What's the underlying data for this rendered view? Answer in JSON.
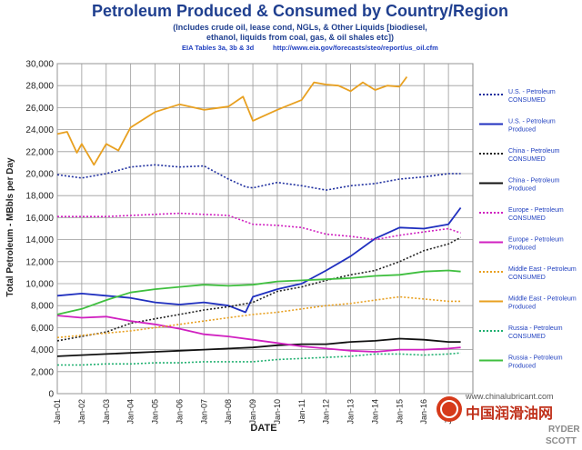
{
  "chart_data": {
    "type": "line",
    "title": "Petroleum Produced & Consumed by Country/Region",
    "subtitle_lines": [
      "(Includes crude oil, lease cond, NGLs, & Other Liquids [biodiesel,",
      "ethanol, liquids from coal, gas, & oil shales etc])"
    ],
    "source_left": "EIA Tables 3a, 3b & 3d",
    "source_right": "http://www.eia.gov/forecasts/steo/report/us_oil.cfm",
    "xlabel": "DATE",
    "ylabel": "Total Petroleum - MBbls per Day",
    "ylim": [
      0,
      30000
    ],
    "ytick_labels": [
      "0",
      "2,000",
      "4,000",
      "6,000",
      "8,000",
      "10,000",
      "12,000",
      "14,000",
      "16,000",
      "18,000",
      "20,000",
      "22,000",
      "24,000",
      "26,000",
      "28,000",
      "30,000"
    ],
    "xtick_labels": [
      "Jan-01",
      "Jan-02",
      "Jan-03",
      "Jan-04",
      "Jan-05",
      "Jan-06",
      "Jan-07",
      "Jan-08",
      "Jan-09",
      "Jan-10",
      "Jan-11",
      "Jan-12",
      "Jan-13",
      "Jan-14",
      "Jan-15",
      "Jan-16",
      "Jan-17"
    ],
    "xlim": [
      2001.0,
      2018.0
    ],
    "grid": true,
    "legend_position": "right",
    "series": [
      {
        "name": "U.S. - Petroleum CONSUMED",
        "color": "#1f2f9f",
        "style": "dotted",
        "x": [
          2001,
          2002,
          2003,
          2004,
          2005,
          2006,
          2007,
          2008,
          2008.7,
          2009,
          2010,
          2011,
          2012,
          2013,
          2014,
          2015,
          2016,
          2017,
          2017.5
        ],
        "y": [
          19900,
          19600,
          20000,
          20600,
          20800,
          20600,
          20700,
          19500,
          18800,
          18700,
          19200,
          18900,
          18500,
          18900,
          19100,
          19500,
          19700,
          20000,
          20000
        ]
      },
      {
        "name": "U.S. - Petroleum Produced",
        "color": "#1f2fbf",
        "style": "solid",
        "x": [
          2001,
          2002,
          2003,
          2004,
          2005,
          2006,
          2007,
          2008,
          2008.7,
          2009,
          2010,
          2011,
          2012,
          2013,
          2014,
          2015,
          2016,
          2017,
          2017.5
        ],
        "y": [
          8900,
          9100,
          8900,
          8700,
          8300,
          8100,
          8300,
          8000,
          7400,
          8800,
          9500,
          10000,
          11200,
          12500,
          14100,
          15100,
          15000,
          15400,
          16900
        ]
      },
      {
        "name": "China - Petroleum CONSUMED",
        "color": "#222222",
        "style": "dotted",
        "x": [
          2001,
          2002,
          2003,
          2004,
          2005,
          2006,
          2007,
          2008,
          2009,
          2010,
          2011,
          2012,
          2013,
          2014,
          2015,
          2016,
          2017,
          2017.5
        ],
        "y": [
          4800,
          5200,
          5600,
          6400,
          6800,
          7200,
          7600,
          7900,
          8300,
          9300,
          9700,
          10300,
          10800,
          11200,
          12000,
          13000,
          13600,
          14200
        ]
      },
      {
        "name": "China - Petroleum Produced",
        "color": "#111111",
        "style": "solid",
        "x": [
          2001,
          2002,
          2003,
          2004,
          2005,
          2006,
          2007,
          2008,
          2009,
          2010,
          2011,
          2012,
          2013,
          2014,
          2015,
          2016,
          2017,
          2017.5
        ],
        "y": [
          3400,
          3500,
          3600,
          3700,
          3800,
          3900,
          4000,
          4100,
          4200,
          4400,
          4500,
          4500,
          4700,
          4800,
          5000,
          4900,
          4700,
          4700
        ]
      },
      {
        "name": "Europe - Petroleum CONSUMED",
        "color": "#d020c0",
        "style": "dotted",
        "x": [
          2001,
          2002,
          2003,
          2004,
          2005,
          2006,
          2007,
          2008,
          2009,
          2010,
          2011,
          2012,
          2013,
          2014,
          2015,
          2016,
          2017,
          2017.5
        ],
        "y": [
          16100,
          16100,
          16100,
          16200,
          16300,
          16400,
          16300,
          16200,
          15400,
          15300,
          15100,
          14500,
          14300,
          14000,
          14400,
          14700,
          15000,
          14600
        ]
      },
      {
        "name": "Europe - Petroleum Produced",
        "color": "#d020c0",
        "style": "solid",
        "x": [
          2001,
          2002,
          2003,
          2004,
          2005,
          2006,
          2007,
          2008,
          2009,
          2010,
          2011,
          2012,
          2013,
          2014,
          2015,
          2016,
          2017,
          2017.5
        ],
        "y": [
          7100,
          6900,
          7000,
          6600,
          6300,
          5900,
          5400,
          5200,
          4900,
          4600,
          4300,
          4100,
          3900,
          3800,
          4000,
          4000,
          4100,
          4200
        ]
      },
      {
        "name": "Middle East - Petroleum CONSUMED",
        "color": "#e8a020",
        "style": "dotted",
        "x": [
          2001,
          2002,
          2003,
          2004,
          2005,
          2006,
          2007,
          2008,
          2009,
          2010,
          2011,
          2012,
          2013,
          2014,
          2015,
          2016,
          2017,
          2017.5
        ],
        "y": [
          5100,
          5300,
          5500,
          5700,
          6000,
          6300,
          6600,
          6900,
          7200,
          7400,
          7700,
          8000,
          8200,
          8500,
          8800,
          8600,
          8400,
          8400
        ]
      },
      {
        "name": "Middle East - Petroleum Produced",
        "color": "#e8a020",
        "style": "solid",
        "x": [
          2001,
          2001.4,
          2001.8,
          2002,
          2002.5,
          2003,
          2003.5,
          2004,
          2005,
          2006,
          2007,
          2008,
          2008.6,
          2009,
          2010,
          2011,
          2011.5,
          2012,
          2012.5,
          2013,
          2013.5,
          2014,
          2014.5,
          2015,
          2015.3
        ],
        "y": [
          23600,
          23800,
          21900,
          22700,
          20800,
          22700,
          22100,
          24200,
          25600,
          26300,
          25800,
          26100,
          27000,
          24800,
          25800,
          26700,
          28300,
          28100,
          28000,
          27500,
          28300,
          27600,
          28000,
          27900,
          28800
        ]
      },
      {
        "name": "Russia - Petroleum CONSUMED",
        "color": "#20b070",
        "style": "dotted",
        "x": [
          2001,
          2002,
          2003,
          2004,
          2005,
          2006,
          2007,
          2008,
          2009,
          2010,
          2011,
          2012,
          2013,
          2014,
          2015,
          2016,
          2017,
          2017.5
        ],
        "y": [
          2600,
          2600,
          2700,
          2700,
          2800,
          2800,
          2900,
          2900,
          2900,
          3100,
          3200,
          3300,
          3400,
          3600,
          3600,
          3500,
          3600,
          3700
        ]
      },
      {
        "name": "Russia - Petroleum Produced",
        "color": "#3fbf3f",
        "style": "solid",
        "x": [
          2001,
          2002,
          2003,
          2004,
          2005,
          2006,
          2007,
          2008,
          2009,
          2010,
          2011,
          2012,
          2013,
          2014,
          2015,
          2016,
          2017,
          2017.5
        ],
        "y": [
          7200,
          7700,
          8500,
          9200,
          9500,
          9700,
          9900,
          9800,
          9900,
          10200,
          10300,
          10400,
          10500,
          10700,
          10800,
          11100,
          11200,
          11100
        ]
      }
    ]
  },
  "watermark": {
    "site": "www.chinalubricant.com",
    "name_cn": "中国润滑油网",
    "company_line1": "RYDER",
    "company_line2": "SCOTT"
  }
}
